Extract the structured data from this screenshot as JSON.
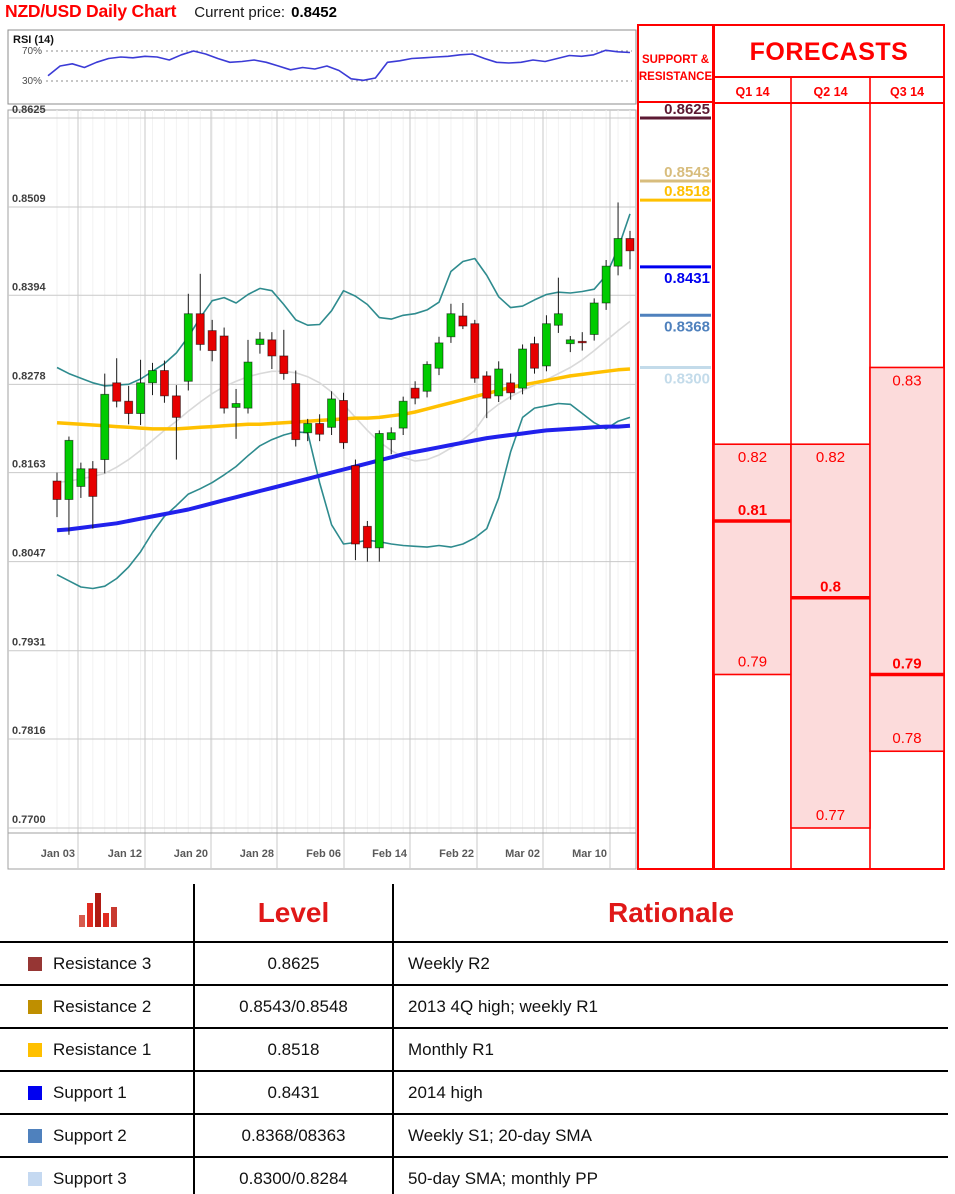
{
  "header": {
    "title": "NZD/USD Daily Chart",
    "current_price_label": "Current price:",
    "current_price_value": "0.8452"
  },
  "rsi": {
    "label": "RSI (14)",
    "upper_label": "70%",
    "lower_label": "30%",
    "upper": 70,
    "lower": 30
  },
  "chart_data": {
    "type": "candlestick",
    "title": "NZD/USD Daily Chart",
    "ylim": [
      0.77,
      0.8625
    ],
    "y_ticks": [
      "0.8625",
      "0.8509",
      "0.8394",
      "0.8278",
      "0.8163",
      "0.8047",
      "0.7931",
      "0.7816",
      "0.7700"
    ],
    "x_ticks": [
      "Jan 03",
      "Jan 12",
      "Jan 20",
      "Jan 28",
      "Feb 06",
      "Feb 14",
      "Feb 22",
      "Mar 02",
      "Mar 10"
    ],
    "grid": true,
    "candles_ohlc": [
      [
        0.8152,
        0.8163,
        0.8105,
        0.8128
      ],
      [
        0.8128,
        0.821,
        0.8082,
        0.8205
      ],
      [
        0.8145,
        0.8176,
        0.813,
        0.8168
      ],
      [
        0.8168,
        0.8178,
        0.809,
        0.8132
      ],
      [
        0.818,
        0.8292,
        0.8162,
        0.8265
      ],
      [
        0.828,
        0.8312,
        0.8248,
        0.8256
      ],
      [
        0.8256,
        0.8276,
        0.8226,
        0.824
      ],
      [
        0.824,
        0.831,
        0.8225,
        0.828
      ],
      [
        0.828,
        0.8306,
        0.8264,
        0.8296
      ],
      [
        0.8296,
        0.8309,
        0.8254,
        0.8263
      ],
      [
        0.8263,
        0.8277,
        0.818,
        0.8235
      ],
      [
        0.8282,
        0.8396,
        0.827,
        0.837
      ],
      [
        0.837,
        0.8422,
        0.8322,
        0.833
      ],
      [
        0.8348,
        0.8362,
        0.8308,
        0.8322
      ],
      [
        0.8341,
        0.8352,
        0.824,
        0.8247
      ],
      [
        0.8248,
        0.8272,
        0.8207,
        0.8253
      ],
      [
        0.8247,
        0.8336,
        0.824,
        0.8307
      ],
      [
        0.833,
        0.8346,
        0.8318,
        0.8337
      ],
      [
        0.8336,
        0.8346,
        0.8298,
        0.8315
      ],
      [
        0.8315,
        0.8349,
        0.8284,
        0.8292
      ],
      [
        0.8279,
        0.8296,
        0.8197,
        0.8206
      ],
      [
        0.8215,
        0.8233,
        0.8204,
        0.8227
      ],
      [
        0.8227,
        0.8239,
        0.8204,
        0.8213
      ],
      [
        0.8222,
        0.8269,
        0.8212,
        0.8259
      ],
      [
        0.8257,
        0.8267,
        0.8194,
        0.8202
      ],
      [
        0.8172,
        0.818,
        0.8049,
        0.807
      ],
      [
        0.8093,
        0.81,
        0.8047,
        0.8065
      ],
      [
        0.8065,
        0.8218,
        0.8047,
        0.8214
      ],
      [
        0.8206,
        0.8222,
        0.8187,
        0.8215
      ],
      [
        0.8221,
        0.8262,
        0.8212,
        0.8256
      ],
      [
        0.8273,
        0.8282,
        0.8252,
        0.826
      ],
      [
        0.8269,
        0.8308,
        0.8261,
        0.8304
      ],
      [
        0.8299,
        0.834,
        0.829,
        0.8332
      ],
      [
        0.834,
        0.8383,
        0.8332,
        0.837
      ],
      [
        0.8367,
        0.8384,
        0.835,
        0.8354
      ],
      [
        0.8357,
        0.8362,
        0.828,
        0.8286
      ],
      [
        0.8289,
        0.8295,
        0.8234,
        0.826
      ],
      [
        0.8263,
        0.8308,
        0.8255,
        0.8298
      ],
      [
        0.828,
        0.8292,
        0.8258,
        0.8267
      ],
      [
        0.8273,
        0.833,
        0.8265,
        0.8324
      ],
      [
        0.8331,
        0.834,
        0.8292,
        0.8299
      ],
      [
        0.8302,
        0.8368,
        0.8295,
        0.8357
      ],
      [
        0.8355,
        0.8417,
        0.8345,
        0.837
      ],
      [
        0.8331,
        0.8341,
        0.832,
        0.8336
      ],
      [
        0.8334,
        0.8346,
        0.8322,
        0.8333
      ],
      [
        0.8343,
        0.839,
        0.8335,
        0.8384
      ],
      [
        0.8384,
        0.844,
        0.8375,
        0.8432
      ],
      [
        0.8432,
        0.8515,
        0.842,
        0.8468
      ],
      [
        0.8468,
        0.8478,
        0.8428,
        0.8452
      ]
    ],
    "overlays": {
      "bollinger_upper": [
        0.83,
        0.8292,
        0.8286,
        0.828,
        0.8276,
        0.8277,
        0.8278,
        0.8285,
        0.8295,
        0.8305,
        0.8319,
        0.834,
        0.8365,
        0.8387,
        0.8391,
        0.8384,
        0.8395,
        0.8403,
        0.84,
        0.8382,
        0.8362,
        0.8355,
        0.8356,
        0.8374,
        0.84,
        0.8393,
        0.8382,
        0.8365,
        0.8363,
        0.8368,
        0.837,
        0.8375,
        0.8385,
        0.8425,
        0.8438,
        0.8442,
        0.842,
        0.8392,
        0.8378,
        0.838,
        0.8388,
        0.8395,
        0.8398,
        0.8397,
        0.8399,
        0.8402,
        0.842,
        0.8455,
        0.85
      ],
      "bollinger_lower": [
        0.803,
        0.8022,
        0.8014,
        0.8012,
        0.8015,
        0.8025,
        0.804,
        0.806,
        0.8085,
        0.8106,
        0.812,
        0.8135,
        0.8142,
        0.815,
        0.816,
        0.8171,
        0.8185,
        0.8198,
        0.8206,
        0.8212,
        0.8216,
        0.8215,
        0.815,
        0.8095,
        0.807,
        0.8072,
        0.8075,
        0.8073,
        0.807,
        0.8068,
        0.8067,
        0.8066,
        0.8068,
        0.8066,
        0.807,
        0.8078,
        0.809,
        0.813,
        0.819,
        0.8235,
        0.8247,
        0.825,
        0.8253,
        0.8252,
        0.824,
        0.8228,
        0.822,
        0.823,
        0.8235
      ],
      "sma20": [
        0.815,
        0.8152,
        0.8155,
        0.8158,
        0.8162,
        0.817,
        0.818,
        0.8192,
        0.8205,
        0.8218,
        0.823,
        0.8243,
        0.8255,
        0.8266,
        0.8275,
        0.8282,
        0.8288,
        0.8292,
        0.8295,
        0.8295,
        0.8293,
        0.8288,
        0.828,
        0.8268,
        0.8252,
        0.8235,
        0.8218,
        0.8203,
        0.8192,
        0.8183,
        0.8178,
        0.818,
        0.8186,
        0.8195,
        0.8206,
        0.8218,
        0.824,
        0.8252,
        0.8262,
        0.827,
        0.8277,
        0.8284,
        0.8292,
        0.83,
        0.831,
        0.8322,
        0.8335,
        0.8348,
        0.836
      ],
      "sma50": [
        0.8228,
        0.8227,
        0.8226,
        0.8225,
        0.8224,
        0.8223,
        0.8222,
        0.8221,
        0.822,
        0.822,
        0.822,
        0.8221,
        0.8222,
        0.8223,
        0.8224,
        0.8225,
        0.8226,
        0.8226,
        0.8227,
        0.8228,
        0.8229,
        0.823,
        0.8231,
        0.8232,
        0.8233,
        0.8234,
        0.8234,
        0.8235,
        0.8237,
        0.8239,
        0.8242,
        0.8246,
        0.825,
        0.8254,
        0.8258,
        0.8262,
        0.8266,
        0.827,
        0.8274,
        0.8277,
        0.828,
        0.8283,
        0.8286,
        0.8289,
        0.8291,
        0.8293,
        0.8295,
        0.8297,
        0.8298
      ],
      "sma100": [
        0.8088,
        0.8089,
        0.8091,
        0.8093,
        0.8095,
        0.8097,
        0.81,
        0.8103,
        0.8106,
        0.8109,
        0.8112,
        0.8115,
        0.8119,
        0.8123,
        0.8127,
        0.8131,
        0.8135,
        0.8139,
        0.8143,
        0.8147,
        0.8151,
        0.8155,
        0.8159,
        0.8163,
        0.8167,
        0.8171,
        0.8175,
        0.8179,
        0.8183,
        0.8187,
        0.819,
        0.8193,
        0.8196,
        0.8199,
        0.8202,
        0.8205,
        0.8208,
        0.821,
        0.8212,
        0.8214,
        0.8216,
        0.8218,
        0.8219,
        0.822,
        0.8221,
        0.8222,
        0.8223,
        0.8223,
        0.8224
      ]
    },
    "rsi_values": [
      37,
      50,
      53,
      48,
      55,
      60,
      62,
      61,
      63,
      62,
      58,
      65,
      70,
      66,
      60,
      55,
      56,
      58,
      55,
      50,
      45,
      48,
      46,
      50,
      44,
      33,
      31,
      34,
      55,
      57,
      60,
      61,
      62,
      63,
      65,
      66,
      60,
      55,
      54,
      55,
      58,
      56,
      60,
      64,
      63,
      65,
      71,
      69,
      68
    ]
  },
  "support_resistance": {
    "header_line1": "SUPPORT &",
    "header_line2": "RESISTANCE",
    "levels": [
      {
        "value": "0.8625",
        "price": 0.8625,
        "color": "#5c1a33",
        "side": "resistance"
      },
      {
        "value": "0.8543",
        "price": 0.8543,
        "color": "#d8bd7d",
        "side": "resistance"
      },
      {
        "value": "0.8518",
        "price": 0.8518,
        "color": "#ffc000",
        "side": "resistance"
      },
      {
        "value": "0.8431",
        "price": 0.8431,
        "color": "#0000f0",
        "side": "support"
      },
      {
        "value": "0.8368",
        "price": 0.8368,
        "color": "#4f81bd",
        "side": "support"
      },
      {
        "value": "0.8300",
        "price": 0.83,
        "color": "#c3dbea",
        "side": "support"
      }
    ]
  },
  "forecasts": {
    "title": "FORECASTS",
    "columns": [
      {
        "label": "Q1 14",
        "high": 0.82,
        "low": 0.79,
        "point": 0.81,
        "high_label": "0.82",
        "low_label": "0.79",
        "point_label": "0.81"
      },
      {
        "label": "Q2 14",
        "high": 0.82,
        "low": 0.77,
        "point": 0.8,
        "high_label": "0.82",
        "low_label": "0.77",
        "point_label": "0.8"
      },
      {
        "label": "Q3 14",
        "high": 0.83,
        "low": 0.78,
        "point": 0.79,
        "high_label": "0.83",
        "low_label": "0.78",
        "point_label": "0.79"
      }
    ]
  },
  "table": {
    "level_header": "Level",
    "rationale_header": "Rationale",
    "rows": [
      {
        "label": "Resistance 3",
        "swatch": "#963634",
        "level": "0.8625",
        "rationale": "Weekly R2"
      },
      {
        "label": "Resistance 2",
        "swatch": "#bf8f00",
        "level": "0.8543/0.8548",
        "rationale": "2013 4Q high; weekly R1"
      },
      {
        "label": "Resistance 1",
        "swatch": "#ffc000",
        "level": "0.8518",
        "rationale": "Monthly R1"
      },
      {
        "label": "Support 1",
        "swatch": "#0000f0",
        "level": "0.8431",
        "rationale": "2014 high"
      },
      {
        "label": "Support 2",
        "swatch": "#4f81bd",
        "level": "0.8368/08363",
        "rationale": "Weekly S1; 20-day SMA"
      },
      {
        "label": "Support 3",
        "swatch": "#c5d9f1",
        "level": "0.8300/0.8284",
        "rationale": "50-day SMA; monthly PP"
      }
    ]
  },
  "colors": {
    "accent_red": "#ff0000",
    "table_header_red": "#e01818",
    "candle_up": "#00cb00",
    "candle_down": "#e60000",
    "bollinger": "#2e8b8e",
    "sma20_gray": "#d9d9d9",
    "sma50_yellow": "#ffc000",
    "sma100_blue": "#2121ec",
    "rsi_line": "#3b3bd6",
    "forecast_fill": "#fcdbdb",
    "grid": "#c9c9c9"
  }
}
